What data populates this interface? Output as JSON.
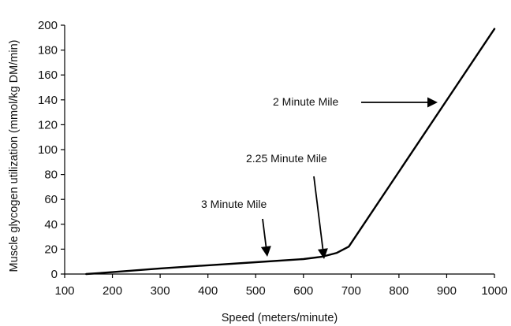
{
  "chart_data": {
    "type": "line",
    "title": "",
    "xlabel": "Speed (meters/minute)",
    "ylabel": "Muscle glycogen utilization (mmol/kg DM/min)",
    "xlim": [
      100,
      1000
    ],
    "ylim": [
      0,
      200
    ],
    "x_ticks": [
      100,
      200,
      300,
      400,
      500,
      600,
      700,
      800,
      900,
      1000
    ],
    "y_ticks": [
      0,
      20,
      40,
      60,
      80,
      100,
      120,
      140,
      160,
      180,
      200
    ],
    "grid": false,
    "legend": "none",
    "series": [
      {
        "x": [
          145,
          200,
          300,
          400,
          500,
          600,
          640,
          670,
          695,
          1000
        ],
        "y": [
          0,
          1.5,
          4.5,
          7,
          9.5,
          12,
          14,
          17,
          22,
          197
        ]
      }
    ],
    "annotations": [
      {
        "text": "3 Minute Mile",
        "target_x": 520,
        "target_y": 12,
        "text_x": 305,
        "text_y": 64
      },
      {
        "text": "2.25 Minute Mile",
        "target_x": 645,
        "target_y": 14,
        "text_x": 373,
        "text_y": 95
      },
      {
        "text": "2 Minute Mile",
        "target_x": 890,
        "target_y": 140,
        "text_x": 648,
        "text_y": 140
      }
    ],
    "colors": {
      "line": "#000000",
      "axis": "#000000",
      "text": "#111111",
      "background": "#ffffff"
    }
  }
}
